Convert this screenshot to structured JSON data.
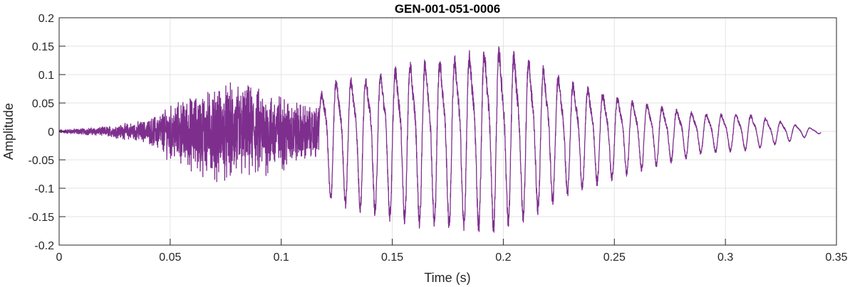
{
  "chart_data": {
    "type": "line",
    "title": "GEN-001-051-0006",
    "xlabel": "Time (s)",
    "ylabel": "Amplitude",
    "xlim": [
      0,
      0.35
    ],
    "ylim": [
      -0.2,
      0.2
    ],
    "xticks": [
      0,
      0.05,
      0.1,
      0.15,
      0.2,
      0.25,
      0.3,
      0.35
    ],
    "xtick_labels": [
      "0",
      "0.05",
      "0.1",
      "0.15",
      "0.2",
      "0.25",
      "0.3",
      "0.35"
    ],
    "yticks": [
      -0.2,
      -0.15,
      -0.1,
      -0.05,
      0,
      0.05,
      0.1,
      0.15,
      0.2
    ],
    "ytick_labels": [
      "-0.2",
      "-0.15",
      "-0.1",
      "-0.05",
      "0",
      "0.05",
      "0.1",
      "0.15",
      "0.2"
    ],
    "grid": true,
    "line_color": "#7E2F8E",
    "signal_duration": 0.343,
    "envelope": {
      "t": [
        0,
        0.02,
        0.04,
        0.05,
        0.065,
        0.08,
        0.1,
        0.115,
        0.12,
        0.14,
        0.16,
        0.18,
        0.195,
        0.21,
        0.23,
        0.25,
        0.27,
        0.29,
        0.31,
        0.33,
        0.343
      ],
      "pos": [
        0.003,
        0.008,
        0.02,
        0.045,
        0.07,
        0.085,
        0.065,
        0.04,
        0.1,
        0.11,
        0.14,
        0.15,
        0.17,
        0.15,
        0.1,
        0.07,
        0.05,
        0.035,
        0.035,
        0.015,
        0.003
      ],
      "neg": [
        -0.003,
        -0.008,
        -0.02,
        -0.05,
        -0.08,
        -0.09,
        -0.07,
        -0.045,
        -0.11,
        -0.13,
        -0.15,
        -0.155,
        -0.16,
        -0.14,
        -0.1,
        -0.075,
        -0.055,
        -0.035,
        -0.03,
        -0.015,
        -0.003
      ]
    },
    "voiced_onset": 0.117
  }
}
